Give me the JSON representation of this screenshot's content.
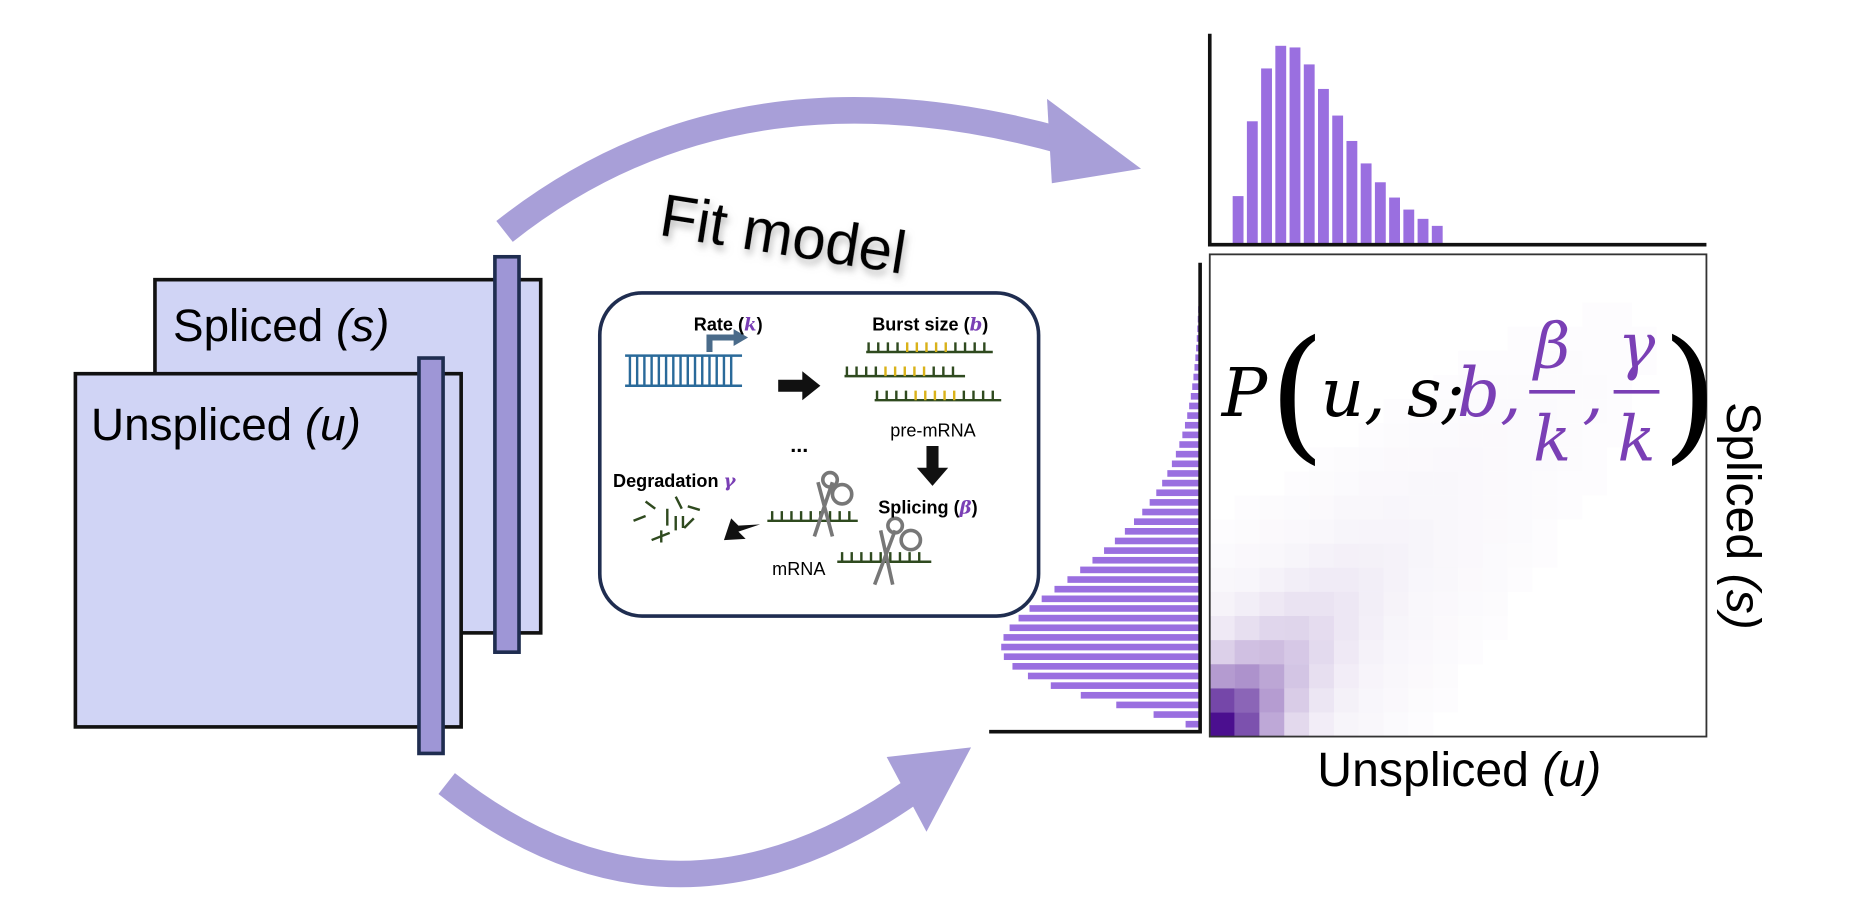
{
  "stacks": {
    "spliced": [
      "Spliced ",
      "(s)"
    ],
    "unspliced": [
      "Unspliced ",
      "(u)"
    ]
  },
  "arrow_label": "Fit model",
  "inset": {
    "rate": [
      "Rate (",
      "k",
      ")"
    ],
    "burst": [
      "Burst size (",
      "b",
      ")"
    ],
    "pre_mrna": "pre-mRNA",
    "ellipsis": "...",
    "degradation": [
      "Degradation ",
      "γ"
    ],
    "splicing": [
      "Splicing (",
      "β",
      ")"
    ],
    "mrna": "mRNA"
  },
  "formula": [
    "P",
    "(",
    "u, s;",
    "b,",
    "β",
    "k",
    ",",
    "γ",
    "k",
    ")"
  ],
  "x_axis": [
    "Unspliced ",
    "(u)"
  ],
  "y_axis": [
    "Spliced ",
    "(s)"
  ]
}
